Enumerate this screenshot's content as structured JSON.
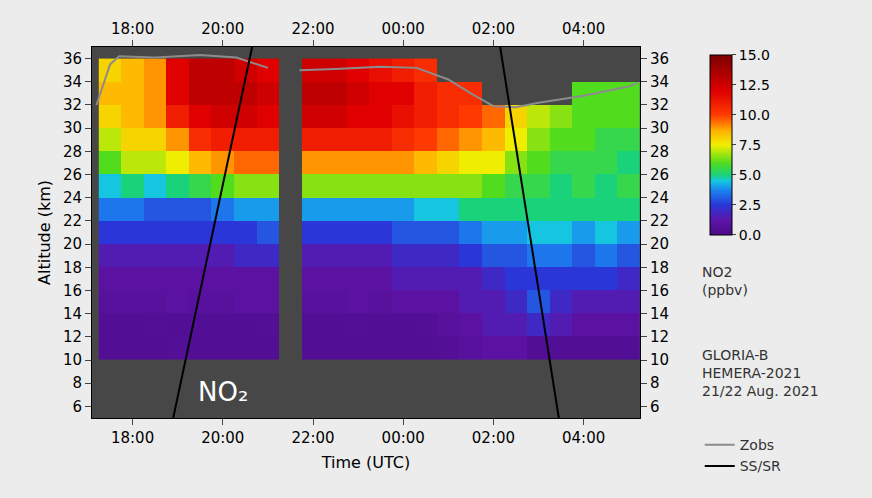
{
  "chart_data": {
    "type": "heatmap",
    "x_label": "Time (UTC)",
    "y_label": "Altitude (km)",
    "xlim": [
      17.1,
      29.25
    ],
    "xticks": [
      {
        "value": 18,
        "label": "18:00"
      },
      {
        "value": 20,
        "label": "20:00"
      },
      {
        "value": 22,
        "label": "22:00"
      },
      {
        "value": 24,
        "label": "00:00"
      },
      {
        "value": 26,
        "label": "02:00"
      },
      {
        "value": 28,
        "label": "04:00"
      }
    ],
    "x2lim": [
      17.1,
      29.25
    ],
    "x2ticks": [
      {
        "value": 18,
        "label": "18:00"
      },
      {
        "value": 20,
        "label": "20:00"
      },
      {
        "value": 22,
        "label": "22:00"
      },
      {
        "value": 24,
        "label": "00:00"
      },
      {
        "value": 26,
        "label": "02:00"
      },
      {
        "value": 28,
        "label": "04:00"
      }
    ],
    "ylim": [
      5,
      37
    ],
    "yticks": [
      6,
      8,
      10,
      12,
      14,
      16,
      18,
      20,
      22,
      24,
      26,
      28,
      30,
      32,
      34,
      36
    ],
    "y2lim": [
      5,
      37
    ],
    "y2ticks": [
      6,
      8,
      10,
      12,
      14,
      16,
      18,
      20,
      22,
      24,
      26,
      28,
      30,
      32,
      34,
      36
    ],
    "x": [
      17.5,
      18.0,
      18.5,
      19.0,
      19.5,
      20.0,
      20.5,
      21.0,
      21.5,
      22.0,
      22.5,
      23.0,
      23.5,
      24.0,
      24.5,
      25.0,
      25.5,
      26.0,
      26.5,
      27.0,
      27.5,
      28.0,
      28.5,
      29.0
    ],
    "y": [
      11,
      13,
      15,
      17,
      19,
      21,
      23,
      25,
      27,
      29,
      31,
      33,
      35
    ],
    "z_by_time": [
      [
        0.5,
        0.5,
        0.8,
        1,
        1.5,
        2.5,
        3.5,
        4.5,
        6,
        7,
        8,
        8.5,
        8
      ],
      [
        0.5,
        0.5,
        0.8,
        1,
        1.5,
        2.5,
        3.5,
        5,
        7,
        8,
        8.5,
        8.5,
        8.5
      ],
      [
        0.5,
        0.6,
        0.8,
        1,
        1.5,
        2.5,
        3,
        4.5,
        7,
        8,
        9,
        9,
        9
      ],
      [
        0.6,
        0.5,
        1,
        1,
        1.5,
        2.5,
        3,
        5,
        7.5,
        9,
        11,
        12,
        12
      ],
      [
        0.5,
        0.5,
        0.8,
        1,
        1.5,
        2.5,
        3,
        5.5,
        8.5,
        10.5,
        12,
        13,
        13
      ],
      [
        0.5,
        0.5,
        0.8,
        1,
        1.5,
        2.5,
        3.5,
        6,
        9,
        11,
        12.5,
        13,
        13
      ],
      [
        0.5,
        0.5,
        1,
        1,
        2,
        2.5,
        4,
        6.5,
        9.5,
        11,
        12.5,
        13,
        12.5
      ],
      [
        0.5,
        0.6,
        1,
        1,
        2,
        3,
        4,
        6.5,
        9.5,
        11,
        12,
        12.5,
        12
      ],
      [
        null,
        null,
        null,
        null,
        null,
        null,
        null,
        null,
        null,
        null,
        null,
        null,
        null
      ],
      [
        0.5,
        0.5,
        0.8,
        1,
        1.5,
        2.5,
        4,
        6.5,
        9,
        11,
        12.5,
        13,
        12.5
      ],
      [
        0.5,
        0.5,
        0.8,
        1,
        1.5,
        2.5,
        4,
        6.5,
        9,
        11,
        12.5,
        13,
        12.5
      ],
      [
        0.5,
        0.6,
        1,
        1,
        1.5,
        2.5,
        4,
        6.5,
        9,
        11,
        12,
        12.5,
        12
      ],
      [
        0.5,
        0.5,
        0.8,
        1,
        1.5,
        2.5,
        4,
        6.5,
        9,
        11,
        12,
        12,
        11.5
      ],
      [
        0.5,
        0.5,
        1,
        1.5,
        2,
        3,
        4,
        6.5,
        9,
        10.5,
        11.5,
        12,
        11
      ],
      [
        0.5,
        0.6,
        1,
        1.5,
        2,
        3,
        4.5,
        6.5,
        8.5,
        10,
        11,
        11,
        10.5
      ],
      [
        0.6,
        0.8,
        1,
        1.5,
        2,
        3,
        4.5,
        6.5,
        8,
        9.5,
        10.5,
        10.5,
        null
      ],
      [
        0.8,
        1,
        1.5,
        1.5,
        2.5,
        3.5,
        5,
        6.5,
        7.5,
        9,
        10,
        10.5,
        null
      ],
      [
        1,
        1.5,
        1.5,
        2,
        3,
        4,
        5,
        6,
        7.5,
        8.5,
        9.5,
        null,
        null
      ],
      [
        1,
        1.5,
        2,
        2.5,
        3,
        4,
        5,
        5.5,
        6.5,
        7.5,
        8,
        null,
        null
      ],
      [
        0.5,
        2,
        3,
        2.5,
        3.5,
        4.5,
        5,
        5.5,
        6,
        6.5,
        7,
        null,
        null
      ],
      [
        0.5,
        1.5,
        2,
        2.5,
        3.5,
        4.5,
        5,
        5,
        5.5,
        6,
        6.5,
        null,
        null
      ],
      [
        0.5,
        1,
        1.5,
        2.5,
        3,
        4,
        5,
        5.5,
        5.5,
        6,
        6,
        6,
        null
      ],
      [
        0.5,
        1,
        1.5,
        2.5,
        3.5,
        4.5,
        5,
        5,
        5.5,
        5.5,
        6,
        6,
        null
      ],
      [
        0.5,
        1,
        1.5,
        2,
        3,
        4,
        5,
        5.5,
        5,
        5.5,
        6,
        6,
        null
      ]
    ],
    "zlim": [
      0,
      15
    ],
    "zticks": [
      {
        "value": 0,
        "label": "0.0"
      },
      2.5,
      {
        "value": 5,
        "label": "5.0"
      },
      7.5,
      {
        "value": 10,
        "label": "10.0"
      },
      12.5,
      {
        "value": 15,
        "label": "15.0"
      }
    ],
    "colorbar_title": "NO2 (ppbv)",
    "series": [
      {
        "name": "Zobs",
        "type": "line",
        "color": "#8c8c8c",
        "x": [
          17.2,
          17.5,
          17.7,
          18.5,
          19.5,
          20.3,
          21.0,
          21.4,
          21.7,
          22.5,
          23.5,
          24.3,
          25.0,
          25.5,
          26.0,
          26.5,
          27.0,
          28.0,
          29.0,
          29.2
        ],
        "values": [
          32,
          35.5,
          36.2,
          36.1,
          36.3,
          36.1,
          35.2,
          null,
          35,
          35.1,
          35.3,
          35.2,
          34.2,
          33,
          31.9,
          31.8,
          32.2,
          32.8,
          33.6,
          33.9
        ]
      },
      {
        "name": "SS/SR",
        "type": "line",
        "color": "#000000",
        "x": [
          18.9,
          20.65,
          null,
          26.15,
          27.45
        ],
        "values": [
          5,
          37,
          null,
          37,
          5
        ]
      }
    ],
    "annotations": [
      {
        "text": "NO₂",
        "x": 20.0,
        "y": 7.2
      }
    ],
    "info_text": [
      "GLORIA-B",
      "HEMERA-2021",
      "21/22 Aug. 2021"
    ],
    "legend": "right",
    "grid": false
  }
}
